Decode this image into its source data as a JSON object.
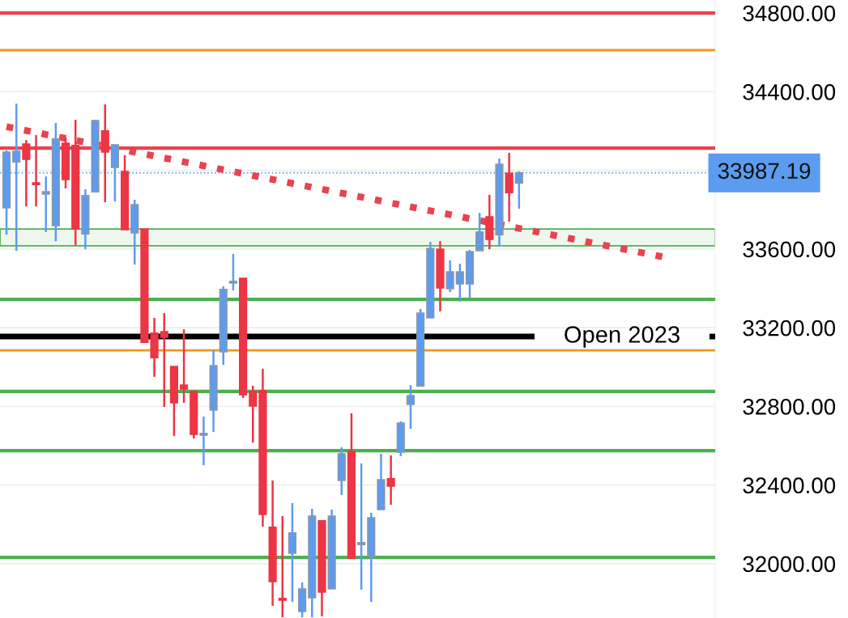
{
  "chart_data": {
    "type": "candlestick",
    "categories": [
      null,
      null,
      null,
      null,
      null,
      null,
      null,
      null,
      null,
      null,
      null,
      null,
      null,
      null,
      null,
      null,
      null,
      null,
      null,
      null,
      null,
      null,
      null,
      null,
      null,
      null,
      null,
      null,
      null,
      null,
      null,
      null,
      null,
      null,
      null,
      null,
      null,
      null,
      null,
      null,
      null,
      null,
      null,
      null,
      null,
      null,
      null,
      null,
      null,
      null,
      null,
      null,
      null,
      null,
      null,
      null,
      null,
      null,
      null,
      null,
      null,
      null,
      null,
      null,
      null,
      null,
      null,
      null,
      null,
      null,
      null,
      null
    ],
    "ohlc": [
      [
        33809,
        34101,
        33673,
        34093
      ],
      [
        34043,
        34339,
        33591,
        34097
      ],
      [
        34134,
        34154,
        33817,
        34056
      ],
      [
        33936,
        34179,
        33817,
        33928
      ],
      [
        33879,
        33969,
        33686,
        33891
      ],
      [
        33719,
        34241,
        33640,
        34159
      ],
      [
        34138,
        34167,
        33908,
        33953
      ],
      [
        34126,
        34257,
        33620,
        33702
      ],
      [
        33677,
        33904,
        33599,
        33871
      ],
      [
        33891,
        34257,
        33891,
        34253
      ],
      [
        34200,
        34335,
        33838,
        34093
      ],
      [
        34015,
        34130,
        33842,
        34130
      ],
      [
        33994,
        34077,
        33698,
        33698
      ],
      [
        33682,
        33850,
        33521,
        33825
      ],
      [
        33702,
        33702,
        33122,
        33126
      ],
      [
        33172,
        33250,
        32950,
        33048
      ],
      [
        33180,
        33274,
        32797,
        33151
      ],
      [
        33003,
        33003,
        32649,
        32818
      ],
      [
        32908,
        33192,
        32818,
        32888
      ],
      [
        32876,
        32876,
        32637,
        32658
      ],
      [
        32654,
        32748,
        32501,
        32662
      ],
      [
        32781,
        33085,
        32670,
        33007
      ],
      [
        33077,
        33410,
        33011,
        33394
      ],
      [
        33427,
        33575,
        33390,
        33435
      ],
      [
        33451,
        33451,
        32843,
        32859
      ],
      [
        32876,
        32905,
        32616,
        32802
      ],
      [
        32880,
        32991,
        32189,
        32251
      ],
      [
        32185,
        32423,
        31786,
        31909
      ],
      [
        31823,
        32242,
        31728,
        31815
      ],
      [
        32053,
        32308,
        31806,
        32156
      ],
      [
        31757,
        31905,
        31728,
        31872
      ],
      [
        31827,
        32279,
        31728,
        32242
      ],
      [
        32218,
        32218,
        31732,
        31856
      ],
      [
        31872,
        32275,
        31872,
        32242
      ],
      [
        32423,
        32592,
        32349,
        32559
      ],
      [
        32571,
        32765,
        32028,
        32028
      ],
      [
        32098,
        32510,
        31868,
        32107
      ],
      [
        32037,
        32259,
        31806,
        32234
      ],
      [
        32275,
        32559,
        32275,
        32427
      ],
      [
        32432,
        32551,
        32300,
        32395
      ],
      [
        32567,
        32724,
        32547,
        32715
      ],
      [
        32810,
        32908,
        32686,
        32855
      ],
      [
        32904,
        33295,
        32904,
        33274
      ],
      [
        33250,
        33636,
        33250,
        33603
      ],
      [
        33599,
        33640,
        33283,
        33402
      ],
      [
        33398,
        33542,
        33381,
        33484
      ],
      [
        33423,
        33525,
        33332,
        33484
      ],
      [
        33423,
        33595,
        33353,
        33587
      ],
      [
        33591,
        33784,
        33591,
        33686
      ],
      [
        33764,
        33875,
        33599,
        33649
      ],
      [
        33673,
        34060,
        33612,
        34031
      ],
      [
        33986,
        34089,
        33739,
        33887
      ],
      [
        33936,
        33995,
        33805,
        33987.19
      ],
      null,
      null,
      null,
      null,
      null,
      null,
      null,
      null,
      null,
      null,
      null,
      null,
      null,
      null,
      null,
      null,
      null,
      null,
      null
    ],
    "colors": [
      "#5b9cf0",
      "#5b9cf0",
      "#ec3545",
      "#ec3545",
      "#5b9cf0",
      "#5b9cf0",
      "#ec3545",
      "#ec3545",
      "#5b9cf0",
      "#5b9cf0",
      "#ec3545",
      "#5b9cf0",
      "#ec3545",
      "#5b9cf0",
      "#ec3545",
      "#ec3545",
      "#ec3545",
      "#ec3545",
      "#ec3545",
      "#ec3545",
      "#5b9cf0",
      "#5b9cf0",
      "#5b9cf0",
      "#5b9cf0",
      "#ec3545",
      "#ec3545",
      "#ec3545",
      "#ec3545",
      "#ec3545",
      "#5b9cf0",
      "#5b9cf0",
      "#5b9cf0",
      "#ec3545",
      "#5b9cf0",
      "#5b9cf0",
      "#ec3545",
      "#5b9cf0",
      "#5b9cf0",
      "#5b9cf0",
      "#ec3545",
      "#5b9cf0",
      "#5b9cf0",
      "#5b9cf0",
      "#5b9cf0",
      "#ec3545",
      "#5b9cf0",
      "#5b9cf0",
      "#5b9cf0",
      "#5b9cf0",
      "#ec3545",
      "#5b9cf0",
      "#ec3545",
      "#5b9cf0",
      null,
      null,
      null,
      null,
      null,
      null,
      null,
      null,
      null,
      null,
      null,
      null,
      null,
      null,
      null,
      null,
      null,
      null,
      null
    ],
    "series": [
      {
        "type": "line",
        "values": [
          34222,
          null,
          null,
          null,
          null,
          null,
          null,
          null,
          null,
          null,
          null,
          null,
          null,
          null,
          null,
          null,
          null,
          null,
          null,
          null,
          null,
          null,
          null,
          null,
          null,
          null,
          null,
          null,
          null,
          null,
          null,
          null,
          null,
          null,
          null,
          null,
          null,
          null,
          null,
          null,
          null,
          null,
          null,
          null,
          null,
          null,
          null,
          null,
          null,
          null,
          null,
          null,
          null,
          null,
          null,
          null,
          null,
          null,
          null,
          null,
          null,
          null,
          null,
          null,
          null,
          null,
          null,
          33556,
          null,
          null,
          null,
          null
        ],
        "color": "#e8434f",
        "line_style": "dotted"
      }
    ],
    "ylim": [
      31724,
      34866
    ],
    "yticks": [
      {
        "value": 32000,
        "label": "32000.00"
      },
      {
        "value": 32400,
        "label": "32400.00"
      },
      {
        "value": 32800,
        "label": "32800.00"
      },
      {
        "value": 33200,
        "label": "33200.00"
      },
      {
        "value": 33600,
        "label": "33600.00"
      },
      {
        "value": 34000,
        "label": null
      },
      {
        "value": 34400,
        "label": "34400.00"
      },
      {
        "value": 34800,
        "label": "34800.00"
      }
    ],
    "tick_labels": "y",
    "grid": "y",
    "bands": [
      {
        "axis": "y",
        "from": 33616,
        "to": 33702,
        "color": "#4caf50"
      }
    ],
    "ref_lines": [
      {
        "axis": "y",
        "value": 34800,
        "color": "#e8434f",
        "line_style": "solid"
      },
      {
        "axis": "y",
        "value": 34611,
        "color": "#f0961e",
        "line_style": "solid"
      },
      {
        "axis": "y",
        "value": 34113,
        "color": "#e8434f",
        "line_style": "solid"
      },
      {
        "axis": "y",
        "value": 33987.19,
        "color": "#5b9cf0",
        "line_style": "dotted",
        "label": "33987.19"
      },
      {
        "axis": "y",
        "value": 33344,
        "color": "#4caf50",
        "line_style": "solid"
      },
      {
        "axis": "y",
        "value": 33155,
        "color": "#000000",
        "line_style": "solid",
        "label": "Open 2023"
      },
      {
        "axis": "y",
        "value": 33085,
        "color": "#f0961e",
        "line_style": "solid"
      },
      {
        "axis": "y",
        "value": 32876,
        "color": "#4caf50",
        "line_style": "solid"
      },
      {
        "axis": "y",
        "value": 32575,
        "color": "#4caf50",
        "line_style": "solid"
      },
      {
        "axis": "y",
        "value": 32032,
        "color": "#4caf50",
        "line_style": "solid"
      }
    ]
  }
}
